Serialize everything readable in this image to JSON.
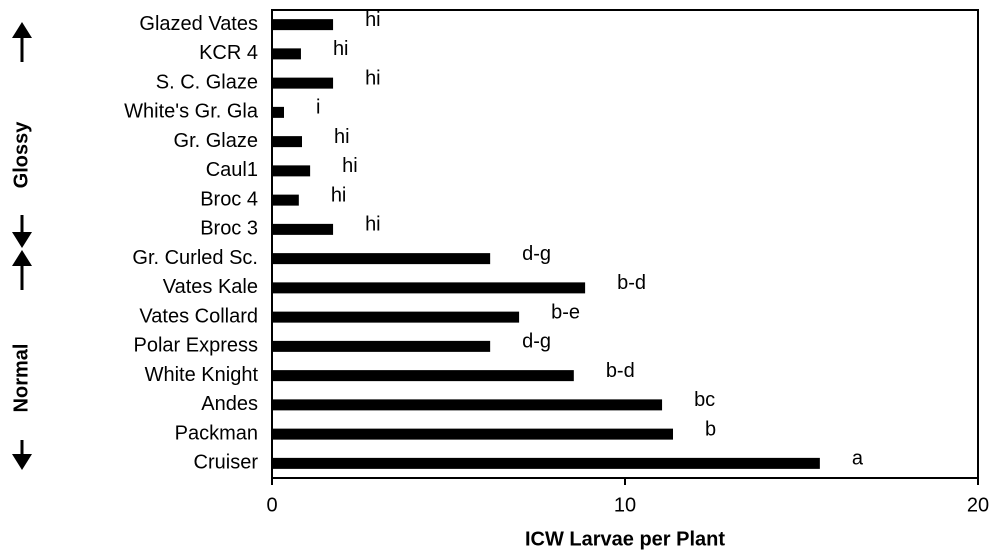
{
  "chart_data": {
    "type": "barh",
    "xlabel": "ICW Larvae per Plant",
    "categories": [
      "Glazed Vates",
      "KCR 4",
      "S. C. Glaze",
      "White's Gr. Gla",
      "Gr. Glaze",
      "Caul1",
      "Broc 4",
      "Broc 3",
      "Gr. Curled Sc.",
      "Vates Kale",
      "Vates Collard",
      "Polar Express",
      "White Knight",
      "Andes",
      "Packman",
      "Cruiser"
    ],
    "values": [
      1.73,
      0.82,
      1.73,
      0.34,
      0.85,
      1.08,
      0.76,
      1.73,
      6.18,
      8.87,
      7.0,
      6.18,
      8.55,
      11.05,
      11.36,
      15.52
    ],
    "annotations": [
      "hi",
      "hi",
      "hi",
      "i",
      "hi",
      "hi",
      "hi",
      "hi",
      "d-g",
      "b-d",
      "b-e",
      "d-g",
      "b-d",
      "bc",
      "b",
      "a"
    ],
    "groups": [
      "Glossy",
      "Normal"
    ],
    "color": "#000000",
    "xlim": [
      0,
      20
    ],
    "xticks": [
      0,
      10,
      20
    ]
  }
}
